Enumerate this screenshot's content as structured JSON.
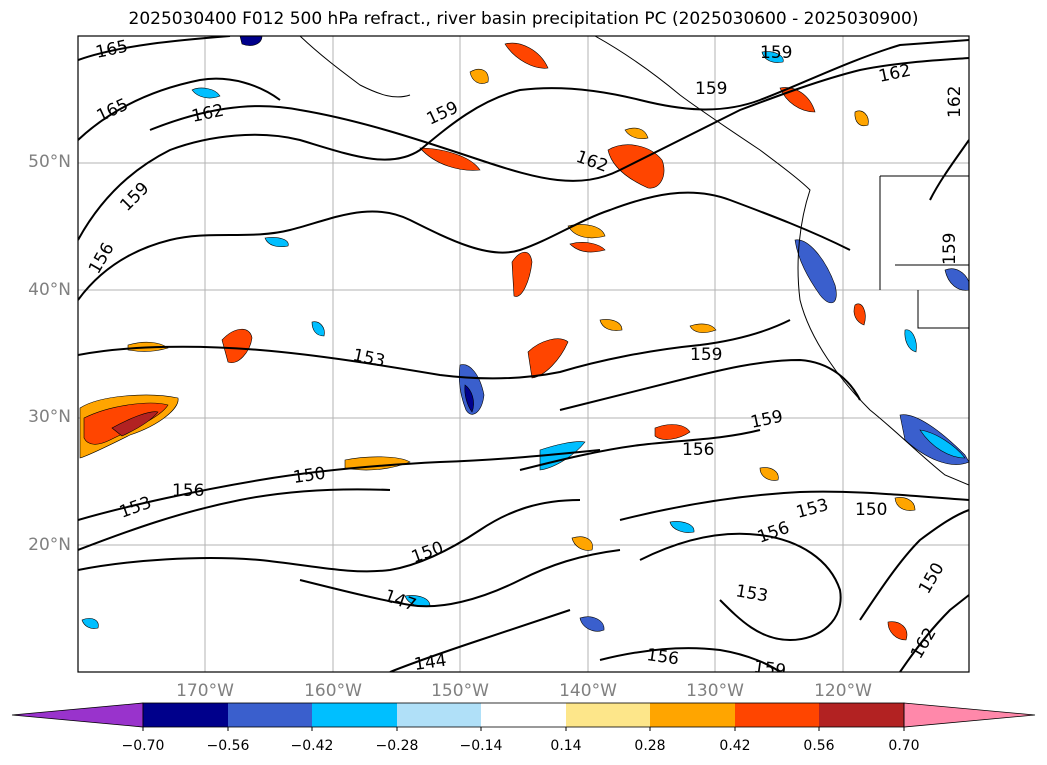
{
  "title": "2025030400 F012 500 hPa refract., river basin precipitation PC (2025030600 - 2025030900)",
  "lat_labels": [
    "50°N",
    "40°N",
    "30°N",
    "20°N"
  ],
  "lon_labels": [
    "170°W",
    "160°W",
    "150°W",
    "140°W",
    "130°W",
    "120°W"
  ],
  "contour_labels": [
    "165",
    "165",
    "162",
    "159",
    "159",
    "162",
    "159",
    "162",
    "162",
    "159",
    "156",
    "153",
    "159",
    "159",
    "156",
    "150",
    "153",
    "156",
    "150",
    "150",
    "156",
    "153",
    "153",
    "147",
    "144",
    "156",
    "159",
    "150",
    "162",
    "159"
  ],
  "colorbar": {
    "ticks": [
      "−0.70",
      "−0.56",
      "−0.42",
      "−0.28",
      "−0.14",
      "0.14",
      "0.28",
      "0.42",
      "0.56",
      "0.70"
    ],
    "colors": [
      "#9933cc",
      "#00008b",
      "#3a5fcd",
      "#00bfff",
      "#b0e0f8",
      "#ffffff",
      "#fde68a",
      "#ffa500",
      "#ff4500",
      "#b22222",
      "#ff88aa"
    ]
  }
}
